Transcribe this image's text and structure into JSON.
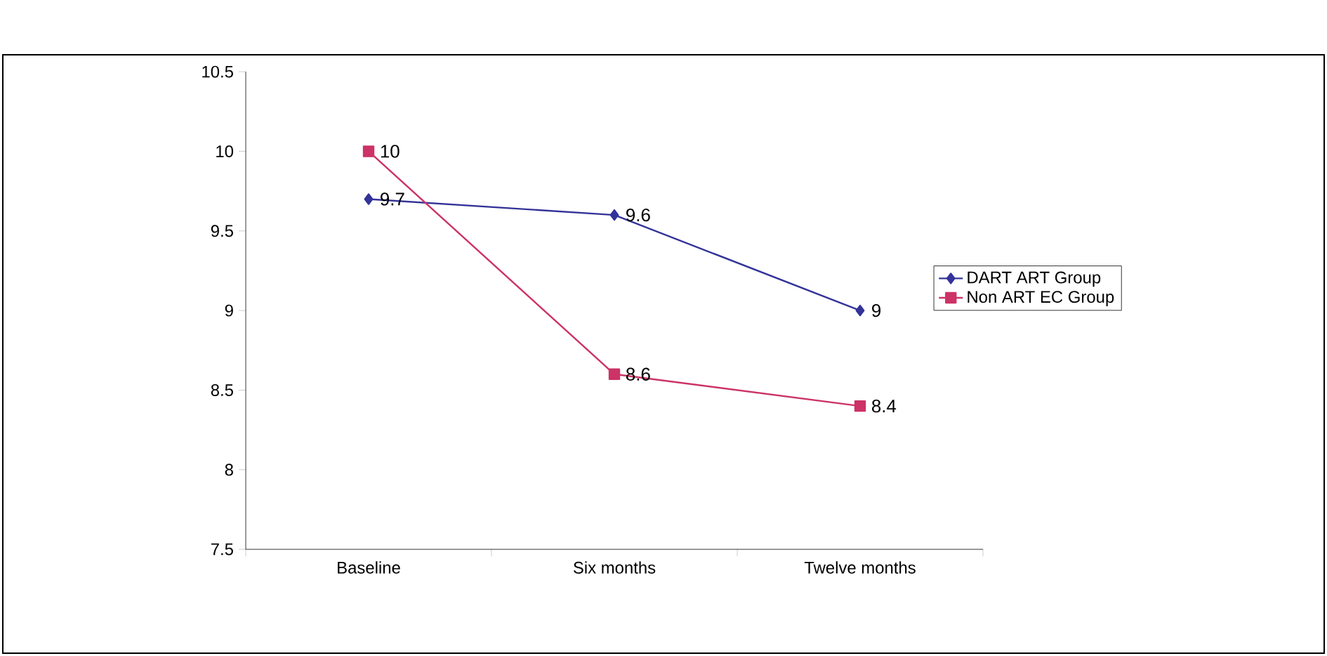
{
  "chart_data": {
    "type": "line",
    "categories": [
      "Baseline",
      "Six months",
      "Twelve months"
    ],
    "series": [
      {
        "name": "DART ART Group",
        "color": "#333399",
        "marker": "diamond",
        "values": [
          9.7,
          9.6,
          9
        ]
      },
      {
        "name": "Non ART EC Group",
        "color": "#cc3366",
        "marker": "square",
        "values": [
          10,
          8.6,
          8.4
        ]
      }
    ],
    "ylim": [
      7.5,
      10.5
    ],
    "yticks": [
      7.5,
      8,
      8.5,
      9,
      9.5,
      10,
      10.5
    ],
    "data_labels": true,
    "grid": false,
    "legend": "right",
    "line_style": "solid"
  }
}
